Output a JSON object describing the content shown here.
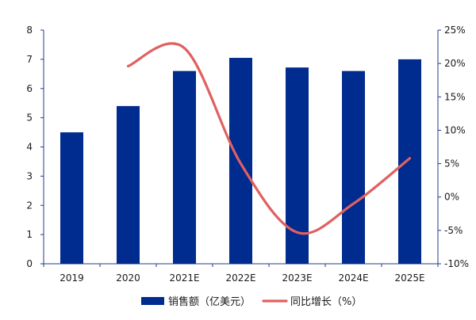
{
  "chart_data": {
    "type": "bar",
    "categories": [
      "2019",
      "2020",
      "2021E",
      "2022E",
      "2023E",
      "2024E",
      "2025E"
    ],
    "series": [
      {
        "name": "销售额（亿美元）",
        "type": "bar",
        "axis": "left",
        "values": [
          4.5,
          5.4,
          6.6,
          7.05,
          6.72,
          6.6,
          7.0
        ],
        "color": "#002b8f"
      },
      {
        "name": "同比增长（%）",
        "type": "line",
        "axis": "right",
        "values": [
          null,
          19.6,
          22.3,
          5.0,
          -5.3,
          -1.0,
          5.8
        ],
        "color": "#e06060"
      }
    ],
    "ylim_left": [
      0,
      8
    ],
    "yticks_left": [
      "0",
      "1",
      "2",
      "3",
      "4",
      "5",
      "6",
      "7",
      "8"
    ],
    "ylim_right": [
      -10,
      25
    ],
    "yticks_right": [
      "-10%",
      "-5%",
      "0%",
      "5%",
      "10%",
      "15%",
      "20%",
      "25%"
    ],
    "legend_position": "bottom",
    "grid": false,
    "axis_color": "#1f3c88"
  }
}
